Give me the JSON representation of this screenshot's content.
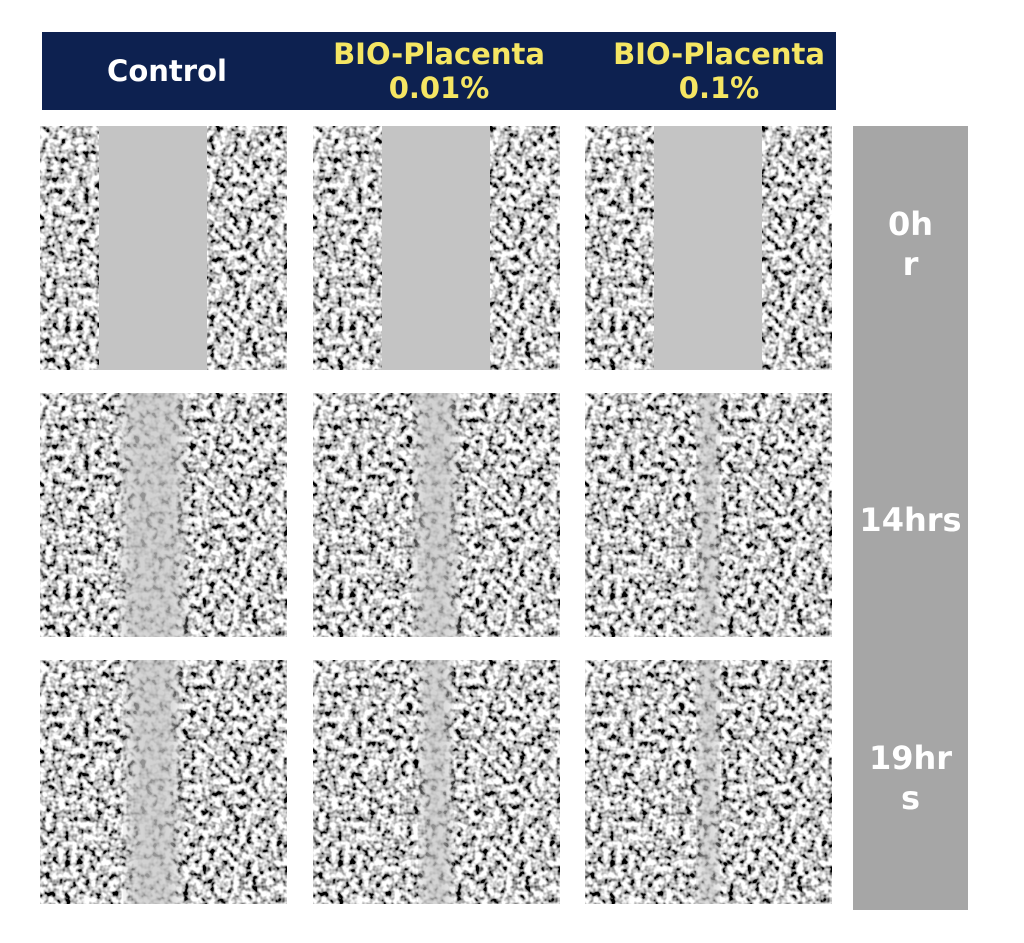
{
  "header": {
    "columns": [
      "Control",
      "BIO-Placenta 0.01%",
      "BIO-Placenta 0.1%"
    ]
  },
  "rows": [
    "0hr",
    "14hrs",
    "19hrs"
  ]
}
